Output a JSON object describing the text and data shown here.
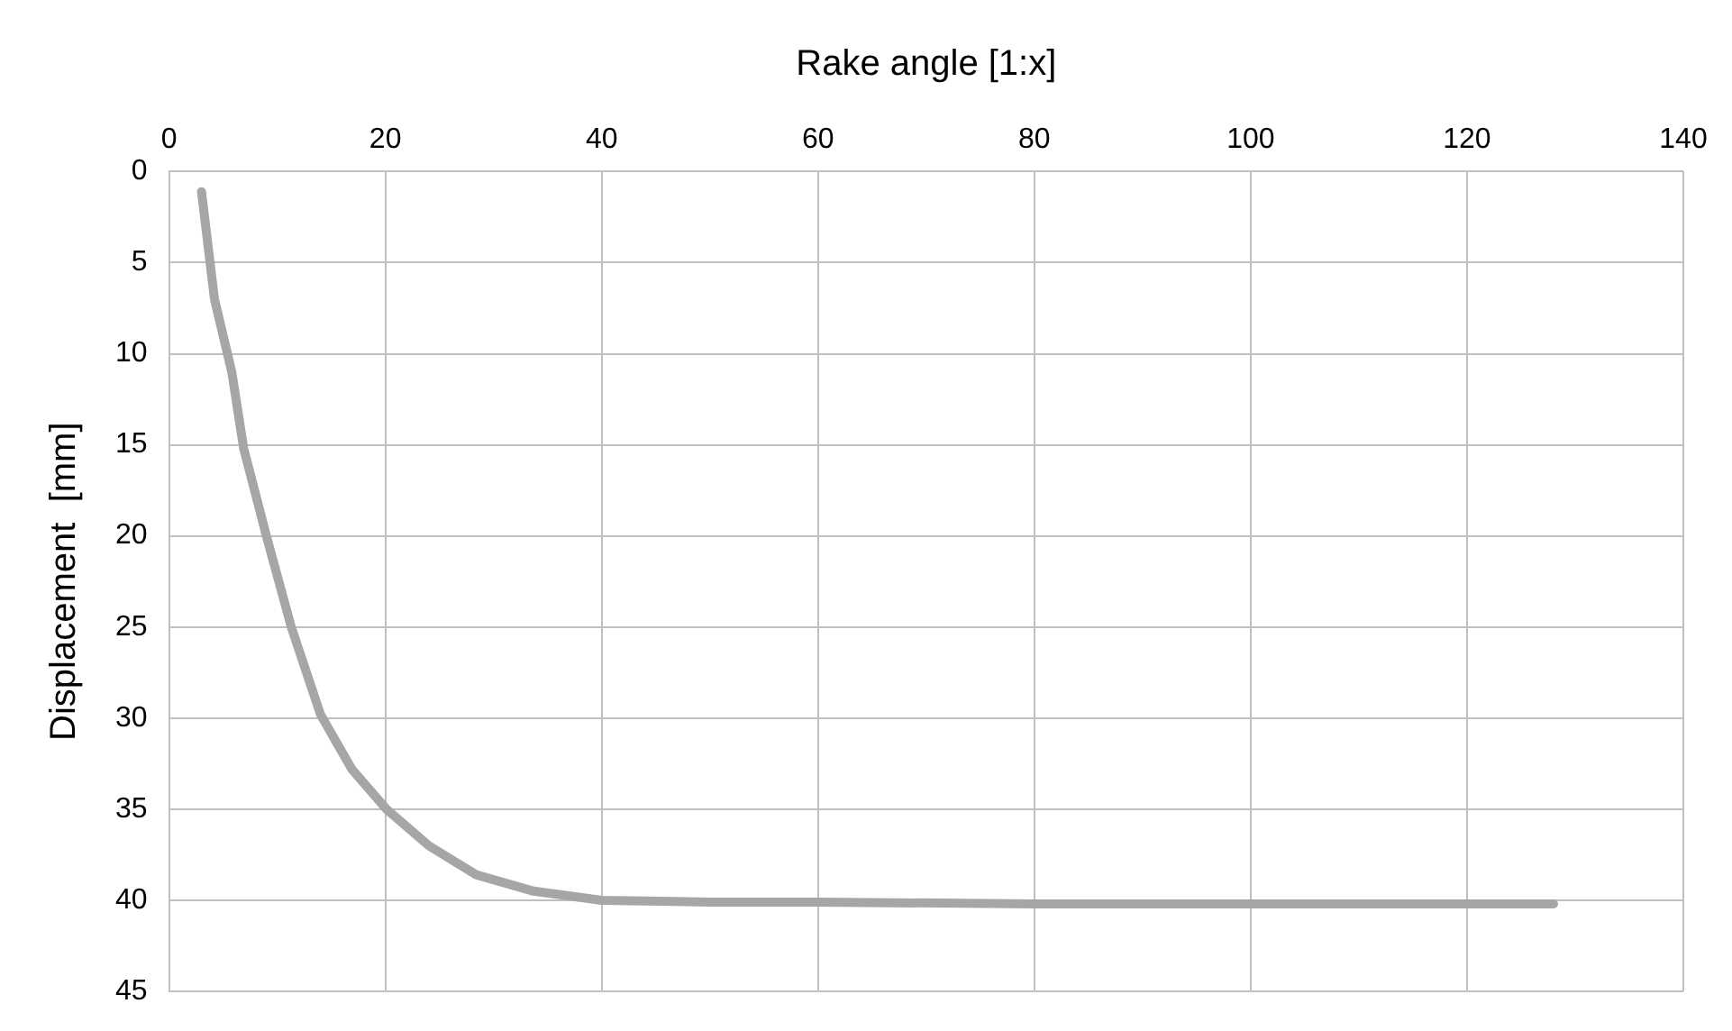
{
  "chart_data": {
    "type": "line",
    "xlabel": "Rake angle [1:x]",
    "ylabel": "Displacement  [mm]",
    "xlim": [
      0,
      140
    ],
    "xticks": [
      0,
      20,
      40,
      60,
      80,
      100,
      120,
      140
    ],
    "ylim": [
      45,
      0
    ],
    "yticks": [
      0,
      5,
      10,
      15,
      20,
      25,
      30,
      35,
      40,
      45
    ],
    "grid": true,
    "legend": false,
    "marker": "none",
    "line_style": "solid",
    "series": [
      {
        "color": "#a6a6a6",
        "x": [
          3,
          4.2,
          5.8,
          6.9,
          9,
          11.3,
          14,
          16.9,
          20.1,
          24,
          28.4,
          33.7,
          40,
          50,
          60,
          80,
          100,
          128
        ],
        "values": [
          1.1,
          7,
          11,
          15.2,
          20,
          25,
          29.8,
          32.8,
          35,
          37,
          38.6,
          39.5,
          40,
          40.1,
          40.1,
          40.2,
          40.2,
          40.2
        ]
      }
    ]
  }
}
